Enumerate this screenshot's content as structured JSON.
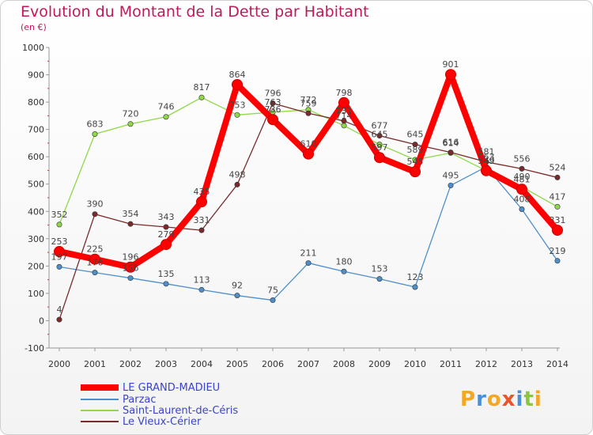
{
  "header": {
    "title": "Evolution du Montant de la Dette par Habitant",
    "unit": "(en €)"
  },
  "chart_data": {
    "type": "line",
    "title": "Evolution du Montant de la Dette par Habitant",
    "ylabel": "(en €)",
    "xlabel": "",
    "x": [
      "2000",
      "2001",
      "2002",
      "2003",
      "2004",
      "2005",
      "2006",
      "2007",
      "2008",
      "2009",
      "2010",
      "2011",
      "2012",
      "2013",
      "2014"
    ],
    "ylim": [
      -100,
      1000
    ],
    "yticks": [
      -100,
      0,
      100,
      200,
      300,
      400,
      500,
      600,
      700,
      800,
      900,
      1000
    ],
    "grid": false,
    "series": [
      {
        "name": "LE GRAND-MADIEU",
        "color": "#ff0000",
        "values": [
          253,
          225,
          196,
          279,
          435,
          864,
          736,
          610,
          798,
          597,
          545,
          901,
          549,
          481,
          331
        ]
      },
      {
        "name": "Parzac",
        "color": "#4f8fc9",
        "values": [
          197,
          176,
          156,
          135,
          113,
          92,
          75,
          211,
          180,
          153,
          123,
          495,
          563,
          408,
          219
        ]
      },
      {
        "name": "Saint-Laurent-de-Céris",
        "color": "#8fd84a",
        "values": [
          352,
          683,
          720,
          746,
          817,
          753,
          763,
          772,
          714,
          645,
          589,
          614,
          549,
          490,
          417
        ]
      },
      {
        "name": "Le Vieux-Cérier",
        "color": "#7a2a2a",
        "values": [
          4,
          390,
          354,
          343,
          331,
          498,
          796,
          759,
          731,
          677,
          645,
          616,
          581,
          556,
          524
        ]
      }
    ]
  },
  "legend": {
    "items": [
      "LE GRAND-MADIEU",
      "Parzac",
      "Saint-Laurent-de-Céris",
      "Le Vieux-Cérier"
    ]
  },
  "logo": {
    "letters": [
      "P",
      "r",
      "o",
      "x",
      "i",
      "t",
      "i"
    ],
    "colors": [
      "#f5a623",
      "#4a90d9",
      "#f5a623",
      "#e8542b",
      "#4a90d9",
      "#8cc63f",
      "#f5a623"
    ]
  }
}
